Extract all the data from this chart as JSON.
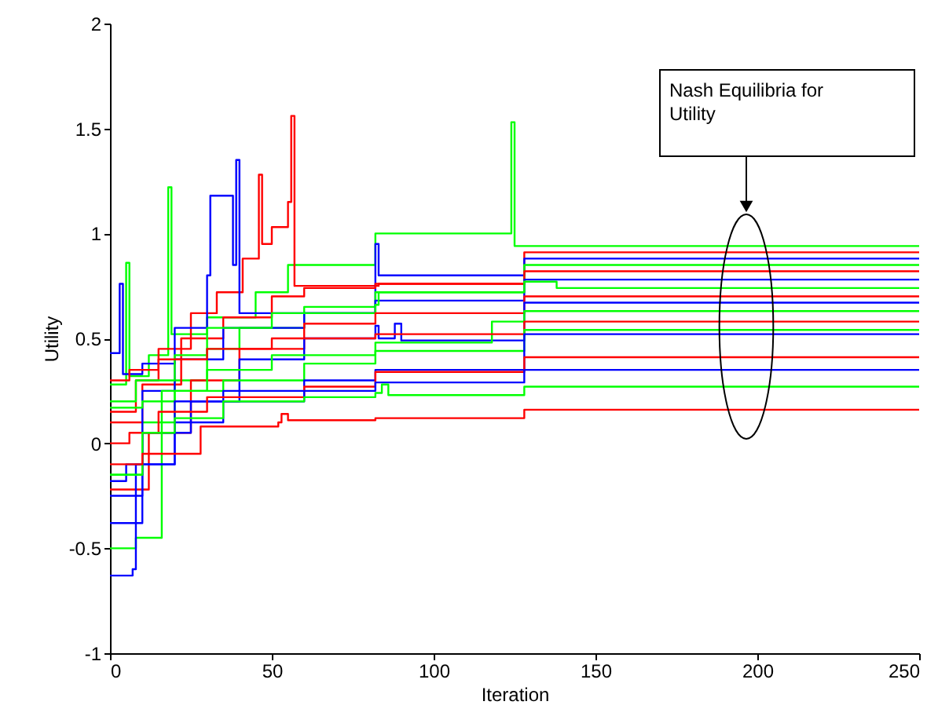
{
  "chart_data": {
    "type": "step",
    "xlabel": "Iteration",
    "ylabel": "Utility",
    "xlim": [
      0,
      250
    ],
    "xticks": [
      0,
      50,
      100,
      150,
      200,
      250
    ],
    "ylim": [
      -1,
      2
    ],
    "yticks": [
      -1,
      -0.5,
      0,
      0.5,
      1,
      1.5,
      2
    ],
    "annotations": [
      "Nash Equilibria for Utility"
    ],
    "series": [
      {
        "color": "#00ff00",
        "x": [
          0,
          5,
          6,
          12,
          18,
          19,
          30,
          45,
          55,
          82,
          124,
          125,
          128,
          250
        ],
        "values": [
          0.28,
          0.86,
          0.32,
          0.42,
          1.22,
          0.52,
          0.6,
          0.72,
          0.85,
          1.0,
          1.53,
          0.94,
          0.94,
          0.94
        ]
      },
      {
        "color": "#ff0000",
        "x": [
          0,
          8,
          15,
          25,
          33,
          41,
          46,
          47,
          50,
          55,
          56,
          57,
          83,
          128,
          250
        ],
        "values": [
          0.15,
          0.3,
          0.45,
          0.62,
          0.72,
          0.88,
          1.28,
          0.95,
          1.03,
          1.15,
          1.56,
          0.75,
          0.76,
          0.91,
          0.91
        ]
      },
      {
        "color": "#0000ff",
        "x": [
          0,
          3,
          4,
          10,
          20,
          30,
          31,
          38,
          39,
          40,
          82,
          83,
          128,
          250
        ],
        "values": [
          0.43,
          0.76,
          0.33,
          0.38,
          0.55,
          0.8,
          1.18,
          0.85,
          1.35,
          0.62,
          0.95,
          0.8,
          0.88,
          0.88
        ]
      },
      {
        "color": "#00ff00",
        "x": [
          0,
          10,
          20,
          30,
          40,
          60,
          82,
          128,
          250
        ],
        "values": [
          -0.15,
          0.1,
          0.3,
          0.45,
          0.55,
          0.65,
          0.72,
          0.85,
          0.85
        ]
      },
      {
        "color": "#ff0000",
        "x": [
          0,
          10,
          22,
          35,
          50,
          60,
          82,
          128,
          250
        ],
        "values": [
          0.1,
          0.28,
          0.5,
          0.6,
          0.7,
          0.74,
          0.76,
          0.82,
          0.82
        ]
      },
      {
        "color": "#0000ff",
        "x": [
          0,
          5,
          10,
          20,
          35,
          60,
          82,
          128,
          250
        ],
        "values": [
          -0.18,
          -0.1,
          0.25,
          0.4,
          0.55,
          0.62,
          0.68,
          0.78,
          0.78
        ]
      },
      {
        "color": "#00ff00",
        "x": [
          0,
          8,
          20,
          30,
          50,
          82,
          83,
          128,
          138,
          250
        ],
        "values": [
          0.2,
          0.3,
          0.42,
          0.55,
          0.62,
          0.66,
          0.72,
          0.77,
          0.74,
          0.74
        ]
      },
      {
        "color": "#ff0000",
        "x": [
          0,
          12,
          25,
          40,
          60,
          82,
          128,
          250
        ],
        "values": [
          -0.22,
          0.05,
          0.3,
          0.45,
          0.57,
          0.62,
          0.7,
          0.7
        ]
      },
      {
        "color": "#0000ff",
        "x": [
          0,
          10,
          25,
          40,
          60,
          82,
          83,
          88,
          90,
          128,
          250
        ],
        "values": [
          -0.25,
          0.05,
          0.2,
          0.4,
          0.5,
          0.56,
          0.5,
          0.57,
          0.49,
          0.67,
          0.67
        ]
      },
      {
        "color": "#00ff00",
        "x": [
          0,
          8,
          16,
          30,
          50,
          82,
          118,
          128,
          250
        ],
        "values": [
          -0.5,
          -0.45,
          0.25,
          0.35,
          0.42,
          0.48,
          0.58,
          0.63,
          0.63
        ]
      },
      {
        "color": "#ff0000",
        "x": [
          0,
          6,
          15,
          30,
          50,
          82,
          128,
          250
        ],
        "values": [
          0.3,
          0.35,
          0.4,
          0.45,
          0.5,
          0.52,
          0.58,
          0.58
        ]
      },
      {
        "color": "#00ff00",
        "x": [
          0,
          10,
          20,
          35,
          60,
          82,
          128,
          250
        ],
        "values": [
          0.17,
          0.2,
          0.25,
          0.3,
          0.38,
          0.44,
          0.54,
          0.54
        ]
      },
      {
        "color": "#0000ff",
        "x": [
          0,
          7,
          8,
          20,
          35,
          60,
          82,
          128,
          250
        ],
        "values": [
          -0.63,
          -0.6,
          -0.1,
          0.2,
          0.25,
          0.3,
          0.35,
          0.52,
          0.52
        ]
      },
      {
        "color": "#ff0000",
        "x": [
          0,
          6,
          15,
          30,
          60,
          82,
          128,
          250
        ],
        "values": [
          0.0,
          0.05,
          0.15,
          0.22,
          0.27,
          0.34,
          0.41,
          0.41
        ]
      },
      {
        "color": "#0000ff",
        "x": [
          0,
          10,
          20,
          35,
          60,
          82,
          128,
          250
        ],
        "values": [
          -0.38,
          -0.1,
          0.1,
          0.2,
          0.25,
          0.29,
          0.35,
          0.35
        ]
      },
      {
        "color": "#00ff00",
        "x": [
          0,
          10,
          20,
          35,
          60,
          82,
          84,
          86,
          128,
          250
        ],
        "values": [
          -0.15,
          0.05,
          0.12,
          0.2,
          0.22,
          0.24,
          0.28,
          0.23,
          0.27,
          0.27
        ]
      },
      {
        "color": "#ff0000",
        "x": [
          0,
          10,
          28,
          52,
          53,
          55,
          82,
          128,
          250
        ],
        "values": [
          -0.1,
          -0.05,
          0.08,
          0.1,
          0.14,
          0.11,
          0.12,
          0.16,
          0.16
        ]
      }
    ]
  }
}
